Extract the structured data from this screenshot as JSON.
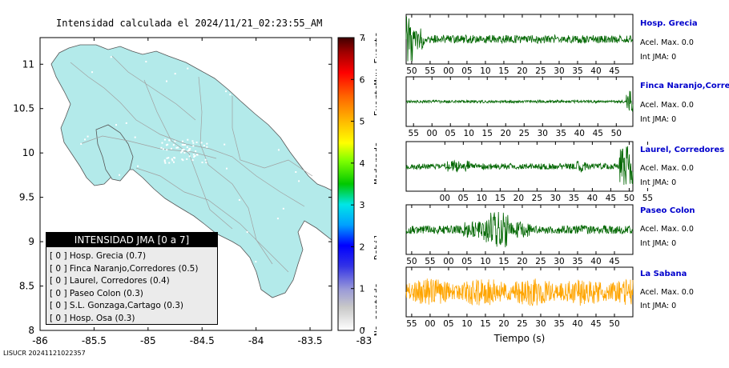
{
  "map": {
    "title": "Intensidad calculada el 2024/11/21_02:23:55_AM",
    "x_ticks": [
      "-86",
      "-85.5",
      "-85",
      "-84.5",
      "-84",
      "-83.5",
      "-83"
    ],
    "x_tick_values": [
      -86,
      -85.5,
      -85,
      -84.5,
      -84,
      -83.5,
      -83
    ],
    "y_ticks": [
      "11",
      "10.5",
      "10",
      "9.5",
      "9",
      "8.5",
      "8"
    ],
    "y_tick_values": [
      11,
      10.5,
      10,
      9.5,
      9,
      8.5,
      8
    ],
    "xlim": [
      -86,
      -83.3
    ],
    "ylim": [
      8,
      11.3
    ],
    "land_color": "#b3eaea",
    "ocean_color": "#ffffff"
  },
  "colorbar": {
    "tick_labels": [
      "0",
      "1",
      "2",
      "3",
      "4",
      "5",
      "6",
      "7"
    ],
    "range": [
      0,
      7
    ],
    "category_labels": [
      "No sentido",
      "Debil",
      "Moderado",
      "Fuerte",
      "Muy Fuerte"
    ],
    "category_positions": [
      0.5,
      2,
      4,
      5.5,
      6.5
    ]
  },
  "legend": {
    "title": "INTENSIDAD JMA [0 a 7]",
    "items": [
      {
        "level": "[ 0 ]",
        "label": "Hosp. Grecia (0.7)"
      },
      {
        "level": "[ 0 ]",
        "label": "Finca Naranjo,Corredores (0.5)"
      },
      {
        "level": "[ 0 ]",
        "label": "Laurel, Corredores (0.4)"
      },
      {
        "level": "[ 0 ]",
        "label": "Paseo Colon (0.3)"
      },
      {
        "level": "[ 0 ]",
        "label": "S.L. Gonzaga,Cartago (0.3)"
      },
      {
        "level": "[ 0 ]",
        "label": "Hosp. Osa (0.3)"
      }
    ]
  },
  "footer": {
    "id": "LISUCR 20241121022357"
  },
  "waveforms": {
    "xlabel": "Tiempo (s)",
    "stations": [
      {
        "name": "Hosp. Grecia",
        "acel": "Acel. Max. 0.0",
        "int": "Int JMA: 0",
        "color": "#006600",
        "ticks": [
          "50",
          "55",
          "00",
          "05",
          "10",
          "15",
          "20",
          "25",
          "30",
          "35",
          "40",
          "45"
        ],
        "first_tick_offset": 0.3
      },
      {
        "name": "Finca Naranjo,Corredores",
        "acel": "Acel. Max. 0.0",
        "int": "Int JMA: 0",
        "color": "#006600",
        "ticks": [
          "55",
          "00",
          "05",
          "10",
          "15",
          "20",
          "25",
          "30",
          "35",
          "40",
          "45",
          "50"
        ],
        "first_tick_offset": 0.4
      },
      {
        "name": "Laurel, Corredores",
        "acel": "Acel. Max. 0.0",
        "int": "Int JMA: 0",
        "color": "#006600",
        "ticks": [
          "00",
          "05",
          "10",
          "15",
          "20",
          "25",
          "30",
          "35",
          "40",
          "45",
          "50",
          "55"
        ],
        "first_tick_offset": 2.1
      },
      {
        "name": "Paseo Colon",
        "acel": "Acel. Max. 0.0",
        "int": "Int JMA: 0",
        "color": "#006600",
        "ticks": [
          "50",
          "55",
          "00",
          "05",
          "10",
          "15",
          "20",
          "25",
          "30",
          "35",
          "40",
          "45"
        ],
        "first_tick_offset": 0.3
      },
      {
        "name": "La Sabana",
        "acel": "Acel. Max. 0.0",
        "int": "Int JMA: 0",
        "color": "#ffa500",
        "ticks": [
          "55",
          "00",
          "05",
          "10",
          "15",
          "20",
          "25",
          "30",
          "35",
          "40",
          "45",
          "50"
        ],
        "first_tick_offset": 0.3
      }
    ]
  }
}
